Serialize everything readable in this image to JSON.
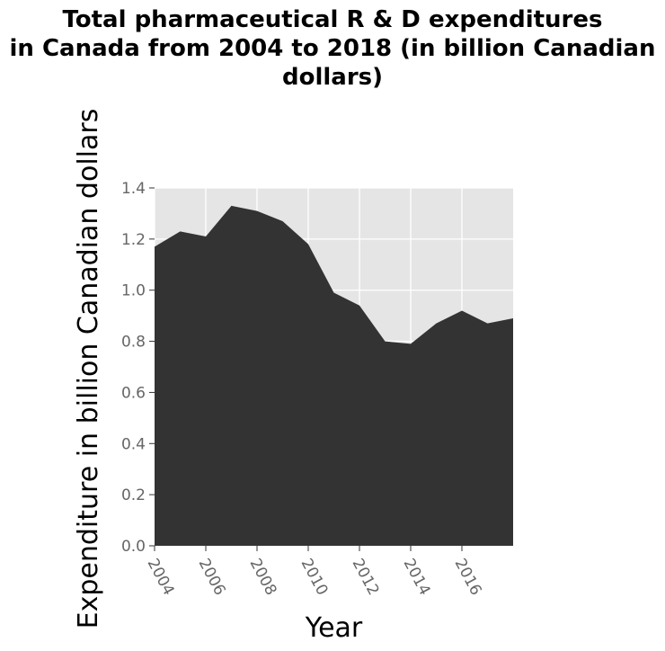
{
  "chart_data": {
    "type": "area",
    "title": "Total pharmaceutical R & D expenditures\nin Canada from 2004 to 2018 (in billion Canadian\ndollars)",
    "xlabel": "Year",
    "ylabel": "Expenditure in billion Canadian dollars",
    "x": [
      2004,
      2005,
      2006,
      2007,
      2008,
      2009,
      2010,
      2011,
      2012,
      2013,
      2014,
      2015,
      2016,
      2017,
      2018
    ],
    "series": [
      {
        "values": [
          1.17,
          1.23,
          1.21,
          1.33,
          1.31,
          1.27,
          1.18,
          0.99,
          0.94,
          0.8,
          0.79,
          0.87,
          0.92,
          0.87,
          0.89
        ]
      }
    ],
    "xlim": [
      2004,
      2018
    ],
    "ylim": [
      0,
      1.4
    ],
    "x_ticks": [
      "2004",
      "2006",
      "2008",
      "2010",
      "2012",
      "2014",
      "2016"
    ],
    "y_ticks": [
      "0.0",
      "0.2",
      "0.4",
      "0.6",
      "0.8",
      "1.0",
      "1.2",
      "1.4"
    ],
    "grid": true,
    "colors": {
      "fill": "#333333",
      "plot_background": "#e5e5e5",
      "grid": "#ffffff",
      "tick_text": "#666666"
    }
  }
}
